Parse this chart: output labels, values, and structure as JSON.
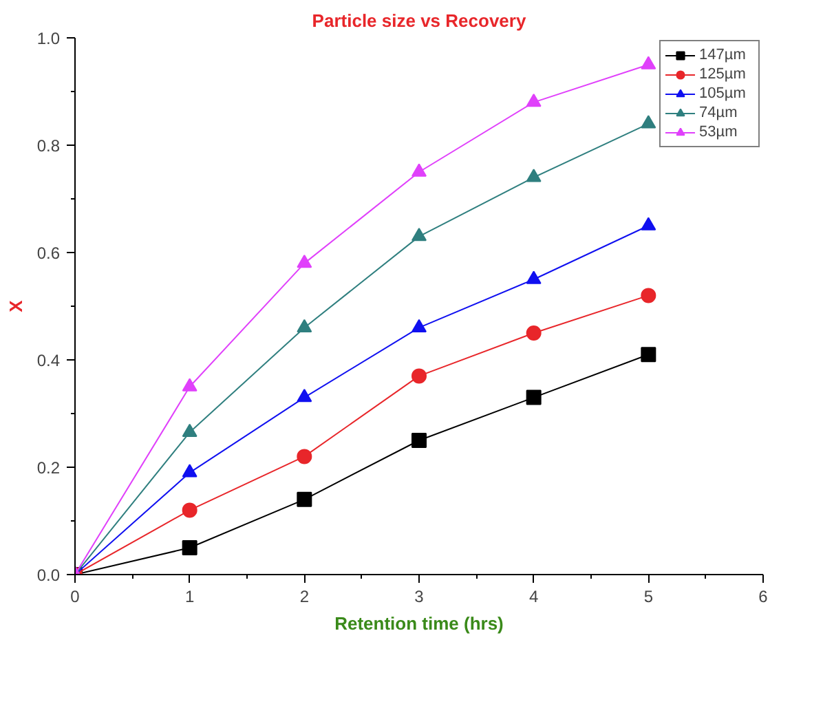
{
  "chart_data": {
    "type": "line",
    "title": "Particle size vs Recovery",
    "xlabel": "Retention time (hrs)",
    "ylabel": "X",
    "x": [
      0,
      1,
      2,
      3,
      4,
      5
    ],
    "series": [
      {
        "name": "147µm",
        "color": "#000000",
        "marker": "square",
        "values": [
          0,
          0.05,
          0.14,
          0.25,
          0.33,
          0.41
        ]
      },
      {
        "name": "125µm",
        "color": "#e8262a",
        "marker": "circle",
        "values": [
          0,
          0.12,
          0.22,
          0.37,
          0.45,
          0.52
        ]
      },
      {
        "name": "105µm",
        "color": "#1010f0",
        "marker": "triangle",
        "values": [
          0,
          0.19,
          0.33,
          0.46,
          0.55,
          0.65
        ]
      },
      {
        "name": "74µm",
        "color": "#2f7f7f",
        "marker": "triangle",
        "values": [
          0,
          0.265,
          0.46,
          0.63,
          0.74,
          0.84
        ]
      },
      {
        "name": "53µm",
        "color": "#e040fb",
        "marker": "triangle",
        "values": [
          0,
          0.35,
          0.58,
          0.75,
          0.88,
          0.95
        ]
      }
    ],
    "xlim": [
      0,
      6
    ],
    "xticks": [
      0,
      {
        "value": 0.5,
        "label": null
      },
      1,
      {
        "value": 1.5,
        "label": null
      },
      2,
      {
        "value": 2.5,
        "label": null
      },
      3,
      {
        "value": 3.5,
        "label": null
      },
      4,
      {
        "value": 4.5,
        "label": null
      },
      5,
      {
        "value": 5.5,
        "label": null
      },
      6
    ],
    "ylim": [
      0,
      1.0
    ],
    "yticks": [
      {
        "value": 0,
        "label": "0.0"
      },
      {
        "value": 0.1,
        "label": null
      },
      {
        "value": 0.2,
        "label": "0.2"
      },
      {
        "value": 0.3,
        "label": null
      },
      {
        "value": 0.4,
        "label": "0.4"
      },
      {
        "value": 0.5,
        "label": null
      },
      {
        "value": 0.6,
        "label": "0.6"
      },
      {
        "value": 0.7,
        "label": null
      },
      {
        "value": 0.8,
        "label": "0.8"
      },
      {
        "value": 0.9,
        "label": null
      },
      {
        "value": 1.0,
        "label": "1.0"
      }
    ],
    "grid": false,
    "legend": "top right",
    "line_style": "solid"
  }
}
